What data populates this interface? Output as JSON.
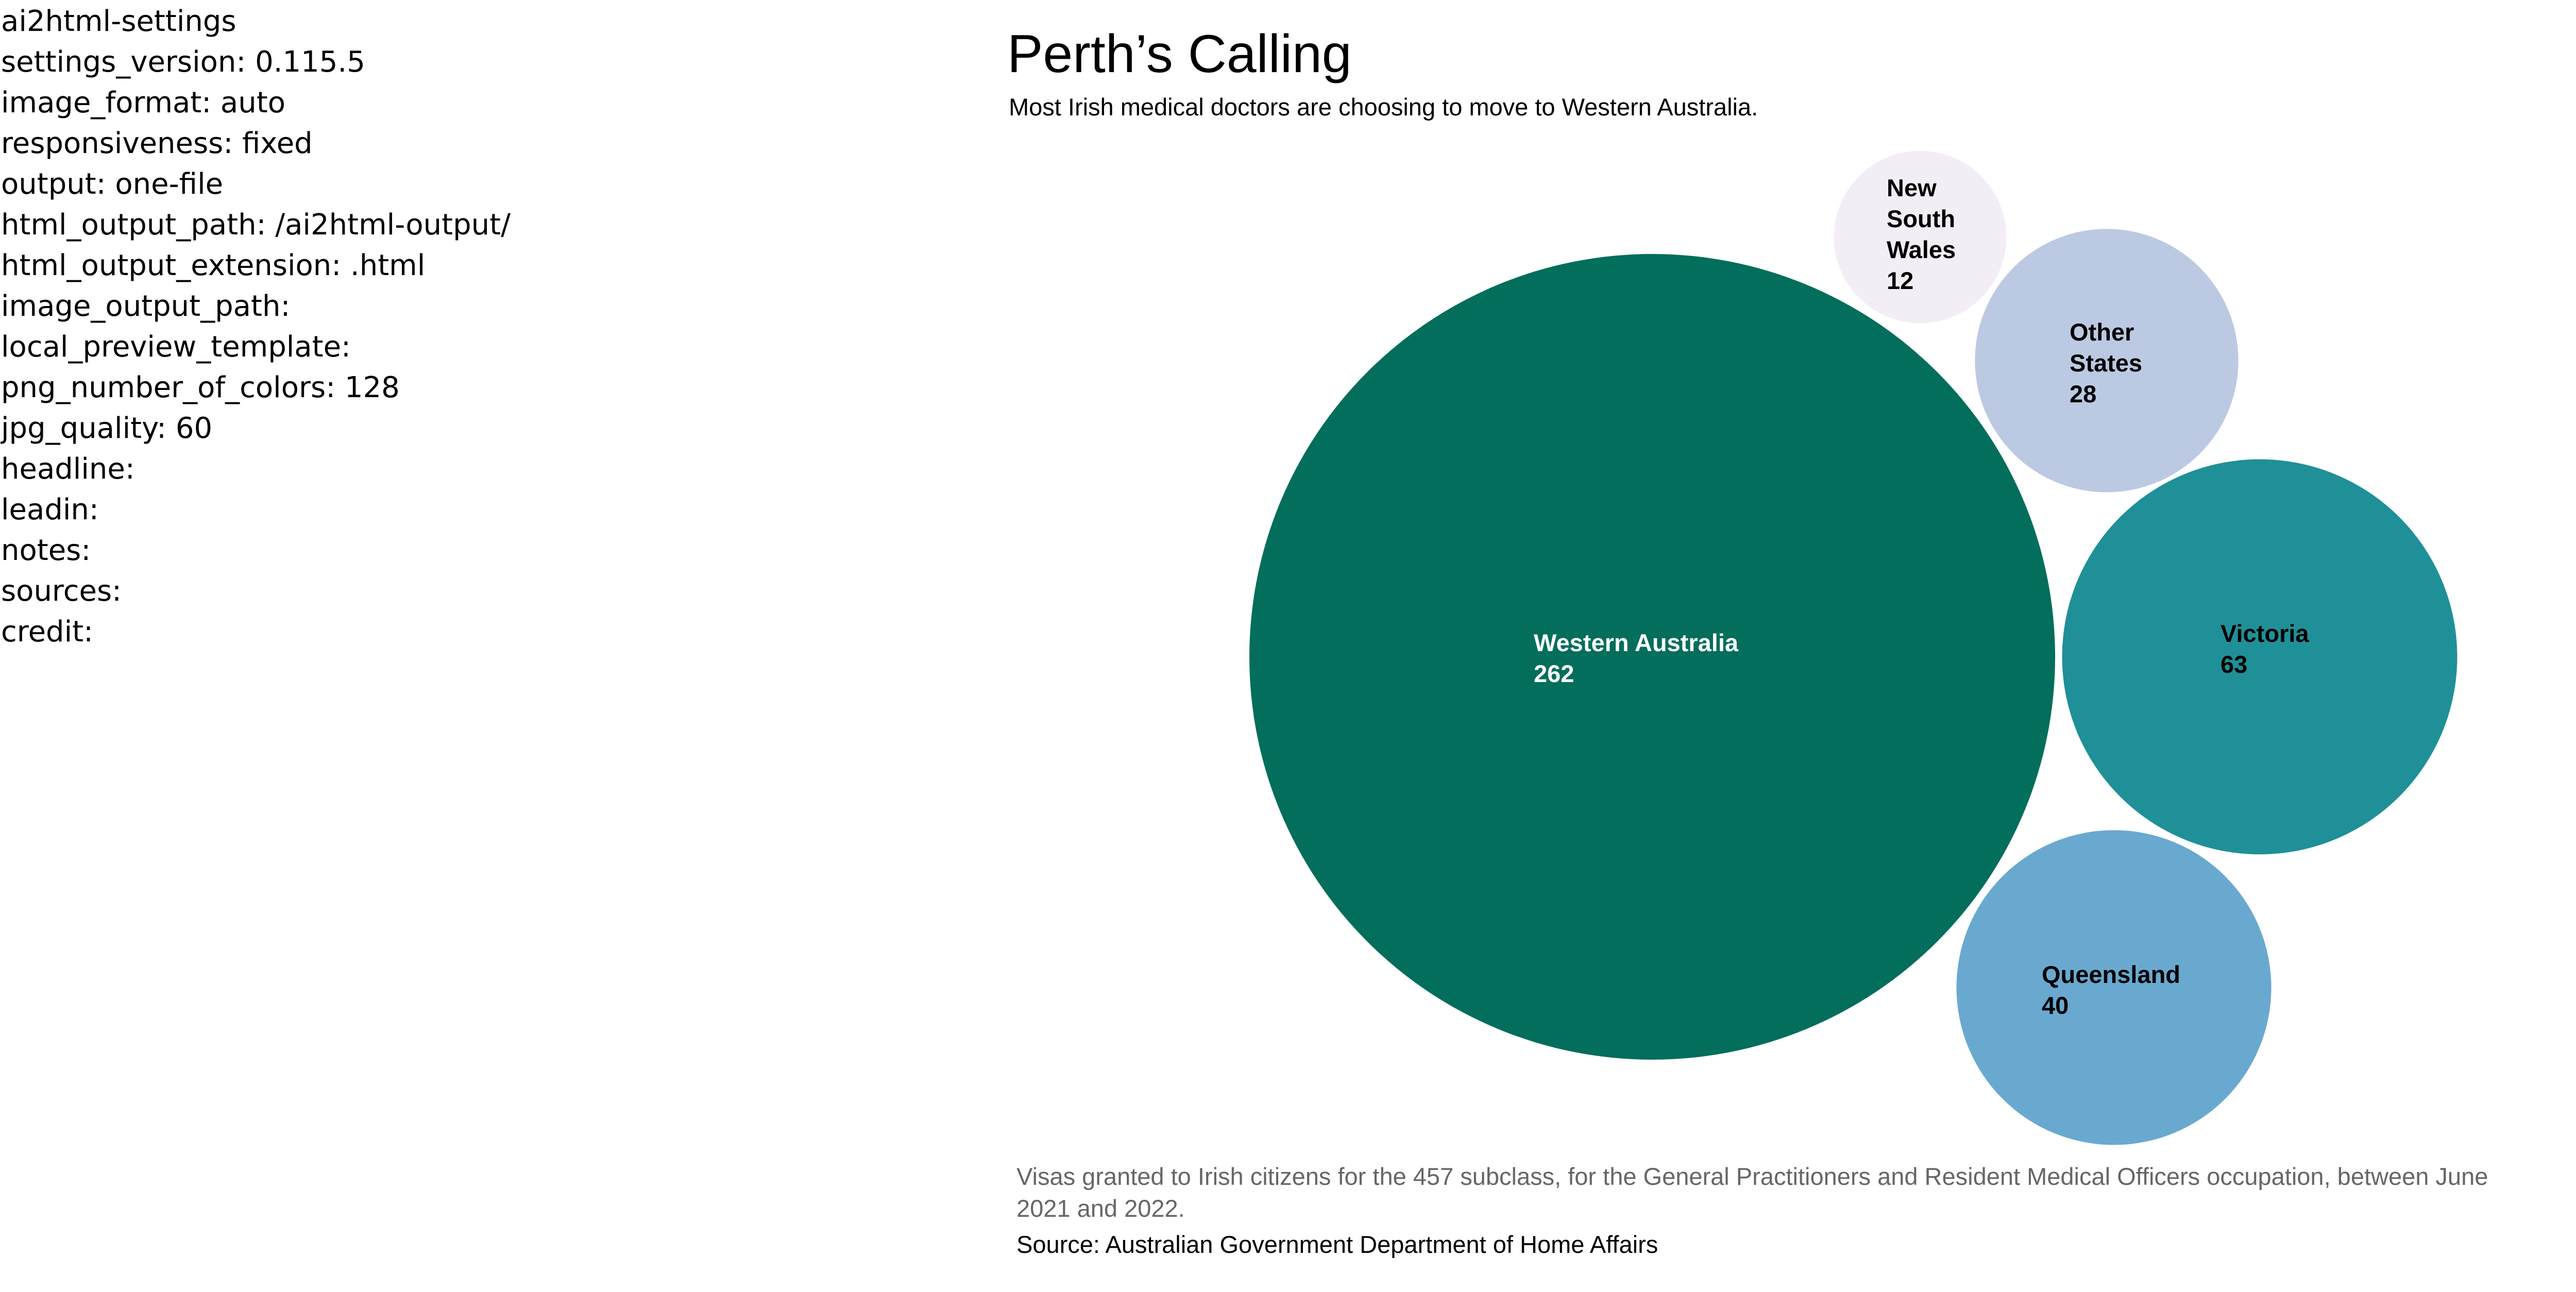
{
  "settings_lines": [
    "ai2html-settings",
    "settings_version: 0.115.5",
    "image_format: auto",
    "responsiveness: fixed",
    "output: one-file",
    "html_output_path: /ai2html-output/",
    "html_output_extension: .html",
    "image_output_path:",
    "local_preview_template:",
    "png_number_of_colors: 128",
    "jpg_quality: 60",
    "headline:",
    "leadin:",
    "notes:",
    "sources:",
    "credit:"
  ],
  "chart_data": {
    "type": "bubble",
    "title": "Perth’s Calling",
    "subtitle": "Most Irish medical doctors are choosing to move to Western Australia.",
    "note": "Visas granted to Irish citizens for the 457 subclass, for the General Practitioners and Resident Medical Officers occupation, between June 2021 and 2022.",
    "source": "Source: Australian Government Department of Home Affairs",
    "bubbles": [
      {
        "name": "Western Australia",
        "value": 262,
        "color": "#036e5b",
        "text_color": "#ffffff"
      },
      {
        "name": "New South Wales",
        "value": 12,
        "color": "#f3eef6",
        "text_color": "#000000"
      },
      {
        "name": "Other States",
        "value": 28,
        "color": "#bcc9e2",
        "text_color": "#000000"
      },
      {
        "name": "Victoria",
        "value": 63,
        "color": "#1f9097",
        "text_color": "#000000"
      },
      {
        "name": "Queensland",
        "value": 40,
        "color": "#69a9d0",
        "text_color": "#000000"
      }
    ]
  }
}
